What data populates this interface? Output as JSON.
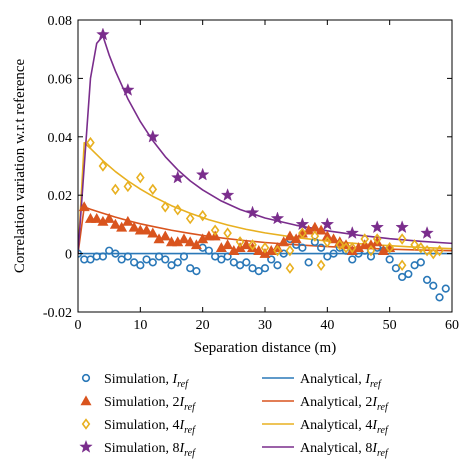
{
  "chart_data": {
    "type": "scatter",
    "xlabel": "Separation distance (m)",
    "ylabel": "Correlation variation w.r.t reference",
    "xlim": [
      0,
      60
    ],
    "ylim": [
      -0.02,
      0.08
    ],
    "xticks": [
      "0",
      "10",
      "20",
      "30",
      "40",
      "50",
      "60"
    ],
    "yticks": [
      "-0.02",
      "0",
      "0.02",
      "0.04",
      "0.06",
      "0.08"
    ],
    "grid": false,
    "legend_position": "bottom",
    "series": [
      {
        "name": "Simulation, I_ref",
        "legend": {
          "prefix": "Simulation, ",
          "coef": "",
          "base": "I",
          "sub": "ref"
        },
        "kind": "scatter",
        "marker": "circle",
        "color": "#2a78b8",
        "points": [
          [
            0,
            0
          ],
          [
            1,
            -0.002
          ],
          [
            2,
            -0.002
          ],
          [
            3,
            -0.001
          ],
          [
            4,
            -0.001
          ],
          [
            5,
            0.001
          ],
          [
            6,
            0
          ],
          [
            7,
            -0.002
          ],
          [
            8,
            -0.001
          ],
          [
            9,
            -0.003
          ],
          [
            10,
            -0.004
          ],
          [
            11,
            -0.002
          ],
          [
            12,
            -0.003
          ],
          [
            13,
            -0.001
          ],
          [
            14,
            -0.002
          ],
          [
            15,
            -0.004
          ],
          [
            16,
            -0.003
          ],
          [
            17,
            -0.001
          ],
          [
            18,
            -0.005
          ],
          [
            19,
            -0.006
          ],
          [
            20,
            0.002
          ],
          [
            21,
            0.001
          ],
          [
            22,
            -0.001
          ],
          [
            23,
            -0.002
          ],
          [
            24,
            -0.001
          ],
          [
            25,
            -0.003
          ],
          [
            26,
            -0.004
          ],
          [
            27,
            -0.003
          ],
          [
            28,
            -0.005
          ],
          [
            29,
            -0.006
          ],
          [
            30,
            -0.005
          ],
          [
            31,
            -0.002
          ],
          [
            32,
            -0.004
          ],
          [
            33,
            0
          ],
          [
            34,
            0.005
          ],
          [
            35,
            0.003
          ],
          [
            36,
            0.002
          ],
          [
            37,
            -0.003
          ],
          [
            38,
            0.004
          ],
          [
            39,
            0.002
          ],
          [
            40,
            -0.001
          ],
          [
            41,
            0
          ],
          [
            42,
            0.002
          ],
          [
            43,
            0.001
          ],
          [
            44,
            -0.002
          ],
          [
            45,
            0
          ],
          [
            46,
            0.001
          ],
          [
            47,
            -0.001
          ],
          [
            48,
            0.002
          ],
          [
            49,
            0.001
          ],
          [
            50,
            -0.002
          ],
          [
            51,
            -0.005
          ],
          [
            52,
            -0.008
          ],
          [
            53,
            -0.007
          ],
          [
            54,
            -0.004
          ],
          [
            55,
            -0.003
          ],
          [
            56,
            -0.009
          ],
          [
            57,
            -0.011
          ],
          [
            58,
            -0.015
          ],
          [
            59,
            -0.012
          ]
        ]
      },
      {
        "name": "Simulation, 2I_ref",
        "legend": {
          "prefix": "Simulation, ",
          "coef": "2",
          "base": "I",
          "sub": "ref"
        },
        "kind": "scatter",
        "marker": "triangle",
        "color": "#d9541e",
        "points": [
          [
            1,
            0.016
          ],
          [
            2,
            0.012
          ],
          [
            3,
            0.012
          ],
          [
            4,
            0.011
          ],
          [
            5,
            0.012
          ],
          [
            6,
            0.01
          ],
          [
            7,
            0.009
          ],
          [
            8,
            0.011
          ],
          [
            9,
            0.009
          ],
          [
            10,
            0.008
          ],
          [
            11,
            0.008
          ],
          [
            12,
            0.007
          ],
          [
            13,
            0.005
          ],
          [
            14,
            0.006
          ],
          [
            15,
            0.004
          ],
          [
            16,
            0.004
          ],
          [
            17,
            0.005
          ],
          [
            18,
            0.004
          ],
          [
            19,
            0.003
          ],
          [
            20,
            0.005
          ],
          [
            21,
            0.006
          ],
          [
            22,
            0.006
          ],
          [
            23,
            0.002
          ],
          [
            24,
            0.003
          ],
          [
            25,
            0.001
          ],
          [
            26,
            0.002
          ],
          [
            27,
            0.003
          ],
          [
            28,
            0.002
          ],
          [
            29,
            0.001
          ],
          [
            30,
            0
          ],
          [
            31,
            0.001
          ],
          [
            32,
            0.002
          ],
          [
            33,
            0.004
          ],
          [
            34,
            0.006
          ],
          [
            35,
            0.005
          ],
          [
            36,
            0.007
          ],
          [
            37,
            0.008
          ],
          [
            38,
            0.009
          ],
          [
            39,
            0.008
          ],
          [
            40,
            0.006
          ],
          [
            41,
            0.005
          ],
          [
            42,
            0.004
          ],
          [
            43,
            0.003
          ],
          [
            44,
            0.001
          ],
          [
            45,
            0.002
          ],
          [
            46,
            0.003
          ],
          [
            47,
            0.003
          ],
          [
            48,
            0.004
          ],
          [
            49,
            0.001
          ],
          [
            50,
            0.002
          ]
        ]
      },
      {
        "name": "Simulation, 4I_ref",
        "legend": {
          "prefix": "Simulation, ",
          "coef": "4",
          "base": "I",
          "sub": "ref"
        },
        "kind": "scatter",
        "marker": "diamond",
        "color": "#e8b020",
        "points": [
          [
            2,
            0.038
          ],
          [
            4,
            0.03
          ],
          [
            6,
            0.022
          ],
          [
            8,
            0.023
          ],
          [
            10,
            0.026
          ],
          [
            12,
            0.022
          ],
          [
            14,
            0.016
          ],
          [
            16,
            0.015
          ],
          [
            18,
            0.012
          ],
          [
            20,
            0.013
          ],
          [
            22,
            0.008
          ],
          [
            24,
            0.007
          ],
          [
            26,
            0.004
          ],
          [
            28,
            0.003
          ],
          [
            30,
            0.002
          ],
          [
            32,
            0.001
          ],
          [
            34,
            0.001
          ],
          [
            36,
            0.007
          ],
          [
            38,
            0.006
          ],
          [
            40,
            0.004
          ],
          [
            42,
            0.003
          ],
          [
            44,
            0.002
          ],
          [
            46,
            0.005
          ],
          [
            48,
            0.005
          ],
          [
            50,
            0.002
          ],
          [
            52,
            -0.004
          ],
          [
            54,
            0.003
          ],
          [
            56,
            0.001
          ],
          [
            58,
            0.001
          ],
          [
            34,
            -0.005
          ],
          [
            39,
            -0.004
          ],
          [
            43,
            0.002
          ],
          [
            47,
            0.001
          ],
          [
            52,
            0.005
          ],
          [
            55,
            0.002
          ],
          [
            57,
            0
          ]
        ]
      },
      {
        "name": "Simulation, 8I_ref",
        "legend": {
          "prefix": "Simulation, ",
          "coef": "8",
          "base": "I",
          "sub": "ref"
        },
        "kind": "scatter",
        "marker": "star",
        "color": "#7a2d8c",
        "points": [
          [
            4,
            0.075
          ],
          [
            8,
            0.056
          ],
          [
            12,
            0.04
          ],
          [
            16,
            0.026
          ],
          [
            20,
            0.027
          ],
          [
            24,
            0.02
          ],
          [
            28,
            0.014
          ],
          [
            32,
            0.012
          ],
          [
            36,
            0.01
          ],
          [
            40,
            0.01
          ],
          [
            44,
            0.007
          ],
          [
            48,
            0.009
          ],
          [
            52,
            0.009
          ],
          [
            56,
            0.007
          ]
        ]
      },
      {
        "name": "Analytical, I_ref",
        "legend": {
          "prefix": "Analytical, ",
          "coef": "",
          "base": "I",
          "sub": "ref"
        },
        "kind": "line",
        "color": "#2a78b8",
        "points": [
          [
            0,
            0
          ],
          [
            60,
            0
          ]
        ]
      },
      {
        "name": "Analytical, 2I_ref",
        "legend": {
          "prefix": "Analytical, ",
          "coef": "2",
          "base": "I",
          "sub": "ref"
        },
        "kind": "line",
        "color": "#d9541e",
        "points": [
          [
            0,
            0
          ],
          [
            1,
            0.016
          ],
          [
            2,
            0.0152
          ],
          [
            4,
            0.0138
          ],
          [
            6,
            0.0125
          ],
          [
            8,
            0.0113
          ],
          [
            10,
            0.0102
          ],
          [
            12,
            0.0093
          ],
          [
            15,
            0.008
          ],
          [
            18,
            0.0069
          ],
          [
            21,
            0.0059
          ],
          [
            24,
            0.0051
          ],
          [
            27,
            0.0044
          ],
          [
            30,
            0.0038
          ],
          [
            35,
            0.003
          ],
          [
            40,
            0.0024
          ],
          [
            45,
            0.0019
          ],
          [
            50,
            0.0015
          ],
          [
            55,
            0.0012
          ],
          [
            60,
            0.001
          ]
        ]
      },
      {
        "name": "Analytical, 4I_ref",
        "legend": {
          "prefix": "Analytical, ",
          "coef": "4",
          "base": "I",
          "sub": "ref"
        },
        "kind": "line",
        "color": "#e8b020",
        "points": [
          [
            0,
            0
          ],
          [
            1,
            0.038
          ],
          [
            2,
            0.036
          ],
          [
            4,
            0.0318
          ],
          [
            6,
            0.0281
          ],
          [
            8,
            0.0249
          ],
          [
            10,
            0.0221
          ],
          [
            12,
            0.0196
          ],
          [
            15,
            0.0164
          ],
          [
            18,
            0.0138
          ],
          [
            21,
            0.0116
          ],
          [
            24,
            0.0098
          ],
          [
            27,
            0.0083
          ],
          [
            30,
            0.0071
          ],
          [
            35,
            0.0055
          ],
          [
            40,
            0.0043
          ],
          [
            45,
            0.0034
          ],
          [
            50,
            0.0027
          ],
          [
            55,
            0.0021
          ],
          [
            60,
            0.0017
          ]
        ]
      },
      {
        "name": "Analytical, 8I_ref",
        "legend": {
          "prefix": "Analytical, ",
          "coef": "8",
          "base": "I",
          "sub": "ref"
        },
        "kind": "line",
        "color": "#7a2d8c",
        "points": [
          [
            0,
            0
          ],
          [
            2,
            0.06
          ],
          [
            3,
            0.072
          ],
          [
            4,
            0.0745
          ],
          [
            5,
            0.068
          ],
          [
            6,
            0.0625
          ],
          [
            8,
            0.053
          ],
          [
            10,
            0.0452
          ],
          [
            12,
            0.0387
          ],
          [
            14,
            0.0332
          ],
          [
            16,
            0.0287
          ],
          [
            18,
            0.0249
          ],
          [
            20,
            0.0218
          ],
          [
            23,
            0.018
          ],
          [
            26,
            0.0151
          ],
          [
            30,
            0.0122
          ],
          [
            35,
            0.0097
          ],
          [
            40,
            0.0078
          ],
          [
            45,
            0.0063
          ],
          [
            50,
            0.0051
          ],
          [
            55,
            0.0042
          ],
          [
            60,
            0.0035
          ]
        ]
      }
    ]
  }
}
